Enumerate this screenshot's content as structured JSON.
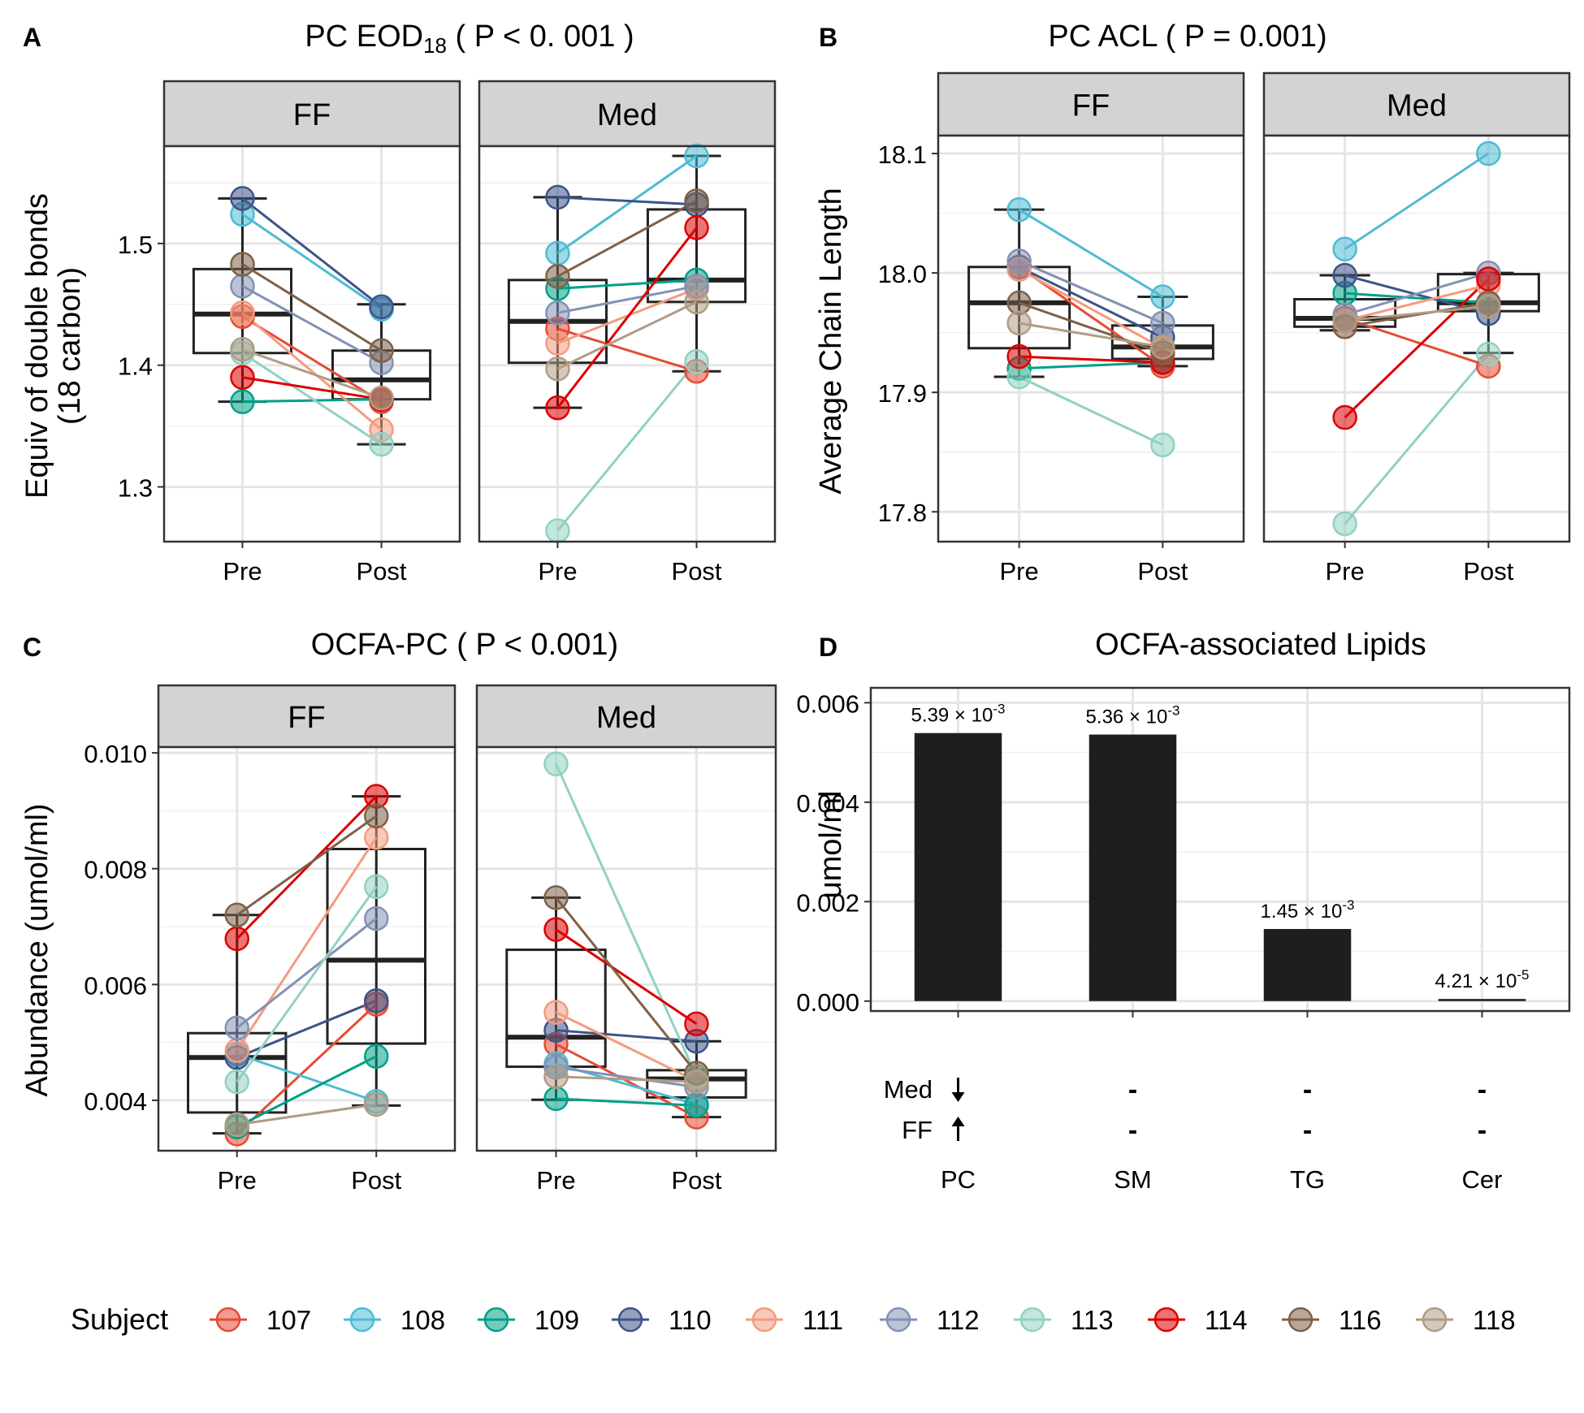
{
  "chart_data": [
    {
      "id": "A",
      "panel_label": "A",
      "type": "boxplot-paired",
      "title": "PC EOD",
      "title_sub": "18",
      "title_suffix": " ( P < 0. 001 )",
      "ylabel_lines": [
        "Equiv of double bonds",
        "(18 carbon)"
      ],
      "ylim": [
        1.255,
        1.58
      ],
      "yticks": [
        "1.3",
        "1.4",
        "1.5"
      ],
      "ytick_values": [
        1.3,
        1.4,
        1.5
      ],
      "minor_ticks": [
        1.35,
        1.45,
        1.55
      ],
      "x_categories": [
        "Pre",
        "Post"
      ],
      "facets": [
        {
          "name": "FF",
          "box": {
            "Pre": [
              1.37,
              1.41,
              1.442,
              1.479,
              1.537
            ],
            "Post": [
              1.335,
              1.372,
              1.388,
              1.412,
              1.45
            ]
          },
          "points": {
            "107": [
              1.44,
              1.37
            ],
            "108": [
              1.524,
              1.446
            ],
            "109": [
              1.37,
              1.372
            ],
            "110": [
              1.537,
              1.448
            ],
            "111": [
              1.443,
              1.347
            ],
            "112": [
              1.465,
              1.402
            ],
            "113": [
              1.41,
              1.335
            ],
            "114": [
              1.39,
              1.372
            ],
            "116": [
              1.483,
              1.412
            ],
            "118": [
              1.413,
              1.373
            ]
          }
        },
        {
          "name": "Med",
          "box": {
            "Pre": [
              1.365,
              1.402,
              1.436,
              1.47,
              1.538
            ],
            "Post": [
              1.395,
              1.452,
              1.47,
              1.528,
              1.572
            ]
          },
          "points": {
            "107": [
              1.43,
              1.395
            ],
            "108": [
              1.492,
              1.572
            ],
            "109": [
              1.463,
              1.47
            ],
            "110": [
              1.538,
              1.532
            ],
            "111": [
              1.418,
              1.463
            ],
            "112": [
              1.443,
              1.465
            ],
            "113": [
              1.264,
              1.403
            ],
            "114": [
              1.365,
              1.513
            ],
            "116": [
              1.473,
              1.535
            ],
            "118": [
              1.397,
              1.452
            ]
          }
        }
      ]
    },
    {
      "id": "B",
      "panel_label": "B",
      "type": "boxplot-paired",
      "title": "PC ACL ( P = 0.001)",
      "title_sub": "",
      "title_suffix": "",
      "ylabel_lines": [
        "Average Chain Length"
      ],
      "ylim": [
        17.775,
        18.115
      ],
      "yticks": [
        "17.8",
        "17.9",
        "18.0",
        "18.1"
      ],
      "ytick_values": [
        17.8,
        17.9,
        18.0,
        18.1
      ],
      "minor_ticks": [
        17.85,
        17.95,
        18.05
      ],
      "x_categories": [
        "Pre",
        "Post"
      ],
      "facets": [
        {
          "name": "FF",
          "box": {
            "Pre": [
              17.913,
              17.937,
              17.975,
              18.005,
              18.053
            ],
            "Post": [
              17.922,
              17.928,
              17.938,
              17.956,
              17.98
            ]
          },
          "points": {
            "107": [
              18.005,
              17.922
            ],
            "108": [
              18.053,
              17.98
            ],
            "109": [
              17.92,
              17.925
            ],
            "110": [
              18.005,
              17.946
            ],
            "111": [
              18.003,
              17.937
            ],
            "112": [
              18.01,
              17.958
            ],
            "113": [
              17.913,
              17.856
            ],
            "114": [
              17.93,
              17.925
            ],
            "116": [
              17.975,
              17.933
            ],
            "118": [
              17.958,
              17.938
            ]
          }
        },
        {
          "name": "Med",
          "box": {
            "Pre": [
              17.952,
              17.955,
              17.962,
              17.978,
              17.998
            ],
            "Post": [
              17.933,
              17.968,
              17.975,
              17.999,
              18.0
            ]
          },
          "points": {
            "107": [
              17.962,
              17.922
            ],
            "108": [
              18.02,
              18.1
            ],
            "109": [
              17.983,
              17.975
            ],
            "110": [
              17.998,
              17.966
            ],
            "111": [
              17.96,
              17.99
            ],
            "112": [
              17.965,
              18.0
            ],
            "113": [
              17.79,
              17.932
            ],
            "114": [
              17.879,
              17.995
            ],
            "116": [
              17.955,
              17.975
            ],
            "118": [
              17.96,
              17.972
            ]
          }
        }
      ]
    },
    {
      "id": "C",
      "panel_label": "C",
      "type": "boxplot-paired",
      "title": "OCFA-PC ( P < 0.001)",
      "title_sub": "",
      "title_suffix": "",
      "ylabel_lines": [
        "Abundance (umol/ml)"
      ],
      "ylim": [
        0.00313,
        0.0101
      ],
      "yticks": [
        "0.004",
        "0.006",
        "0.008",
        "0.010"
      ],
      "ytick_values": [
        0.004,
        0.006,
        0.008,
        0.01
      ],
      "minor_ticks": [
        0.005,
        0.007,
        0.009
      ],
      "x_categories": [
        "Pre",
        "Post"
      ],
      "facets": [
        {
          "name": "FF",
          "box": {
            "Pre": [
              0.00343,
              0.00379,
              0.00474,
              0.00516,
              0.0072
            ],
            "Post": [
              0.00391,
              0.00498,
              0.00642,
              0.00834,
              0.00925
            ]
          },
          "points": {
            "107": [
              0.00342,
              0.00566
            ],
            "108": [
              0.0048,
              0.00398
            ],
            "109": [
              0.00354,
              0.00476
            ],
            "110": [
              0.00474,
              0.00572
            ],
            "111": [
              0.00486,
              0.00854
            ],
            "112": [
              0.00525,
              0.00714
            ],
            "113": [
              0.00432,
              0.00769
            ],
            "114": [
              0.00679,
              0.00925
            ],
            "116": [
              0.0072,
              0.00891
            ],
            "118": [
              0.00358,
              0.00393
            ]
          }
        },
        {
          "name": "Med",
          "box": {
            "Pre": [
              0.00401,
              0.00458,
              0.00509,
              0.0066,
              0.0075
            ],
            "Post": [
              0.00371,
              0.00405,
              0.00437,
              0.00452,
              0.00502
            ]
          },
          "points": {
            "107": [
              0.00497,
              0.00371
            ],
            "108": [
              0.00463,
              0.00393
            ],
            "109": [
              0.00403,
              0.00391
            ],
            "110": [
              0.00521,
              0.00502
            ],
            "111": [
              0.00552,
              0.00433
            ],
            "112": [
              0.00457,
              0.00423
            ],
            "113": [
              0.00981,
              0.00441
            ],
            "114": [
              0.00695,
              0.00532
            ],
            "116": [
              0.0075,
              0.00447
            ],
            "118": [
              0.00441,
              0.00432
            ]
          }
        }
      ]
    },
    {
      "id": "D",
      "panel_label": "D",
      "type": "bar",
      "title": "OCFA-associated Lipids",
      "ylabel": "umol/ml",
      "ylim": [
        -0.0002,
        0.0063
      ],
      "yticks": [
        "0.000",
        "0.002",
        "0.004",
        "0.006"
      ],
      "ytick_values": [
        0,
        0.002,
        0.004,
        0.006
      ],
      "minor_ticks": [
        0.001,
        0.003,
        0.005
      ],
      "categories": [
        "PC",
        "SM",
        "TG",
        "Cer"
      ],
      "values": [
        0.00539,
        0.00536,
        0.00145,
        4.21e-05
      ],
      "bar_labels": [
        {
          "mant": "5.39",
          "exp": "-3"
        },
        {
          "mant": "5.36",
          "exp": "-3"
        },
        {
          "mant": "1.45",
          "exp": "-3"
        },
        {
          "mant": "4.21",
          "exp": "-5"
        }
      ],
      "row_labels": [
        "Med",
        "FF"
      ],
      "indicators": {
        "Med": [
          "↓",
          "-",
          "-",
          "-"
        ],
        "FF": [
          "↑",
          "-",
          "-",
          "-"
        ]
      }
    }
  ],
  "legend": {
    "title": "Subject",
    "items": [
      {
        "label": "107",
        "color": "#E64B35"
      },
      {
        "label": "108",
        "color": "#4DBBD5"
      },
      {
        "label": "109",
        "color": "#00A087"
      },
      {
        "label": "110",
        "color": "#3C5488"
      },
      {
        "label": "111",
        "color": "#F39B7F"
      },
      {
        "label": "112",
        "color": "#8491B4"
      },
      {
        "label": "113",
        "color": "#91D1C2"
      },
      {
        "label": "114",
        "color": "#DC0000"
      },
      {
        "label": "116",
        "color": "#7E6148"
      },
      {
        "label": "118",
        "color": "#B09C85"
      }
    ]
  }
}
